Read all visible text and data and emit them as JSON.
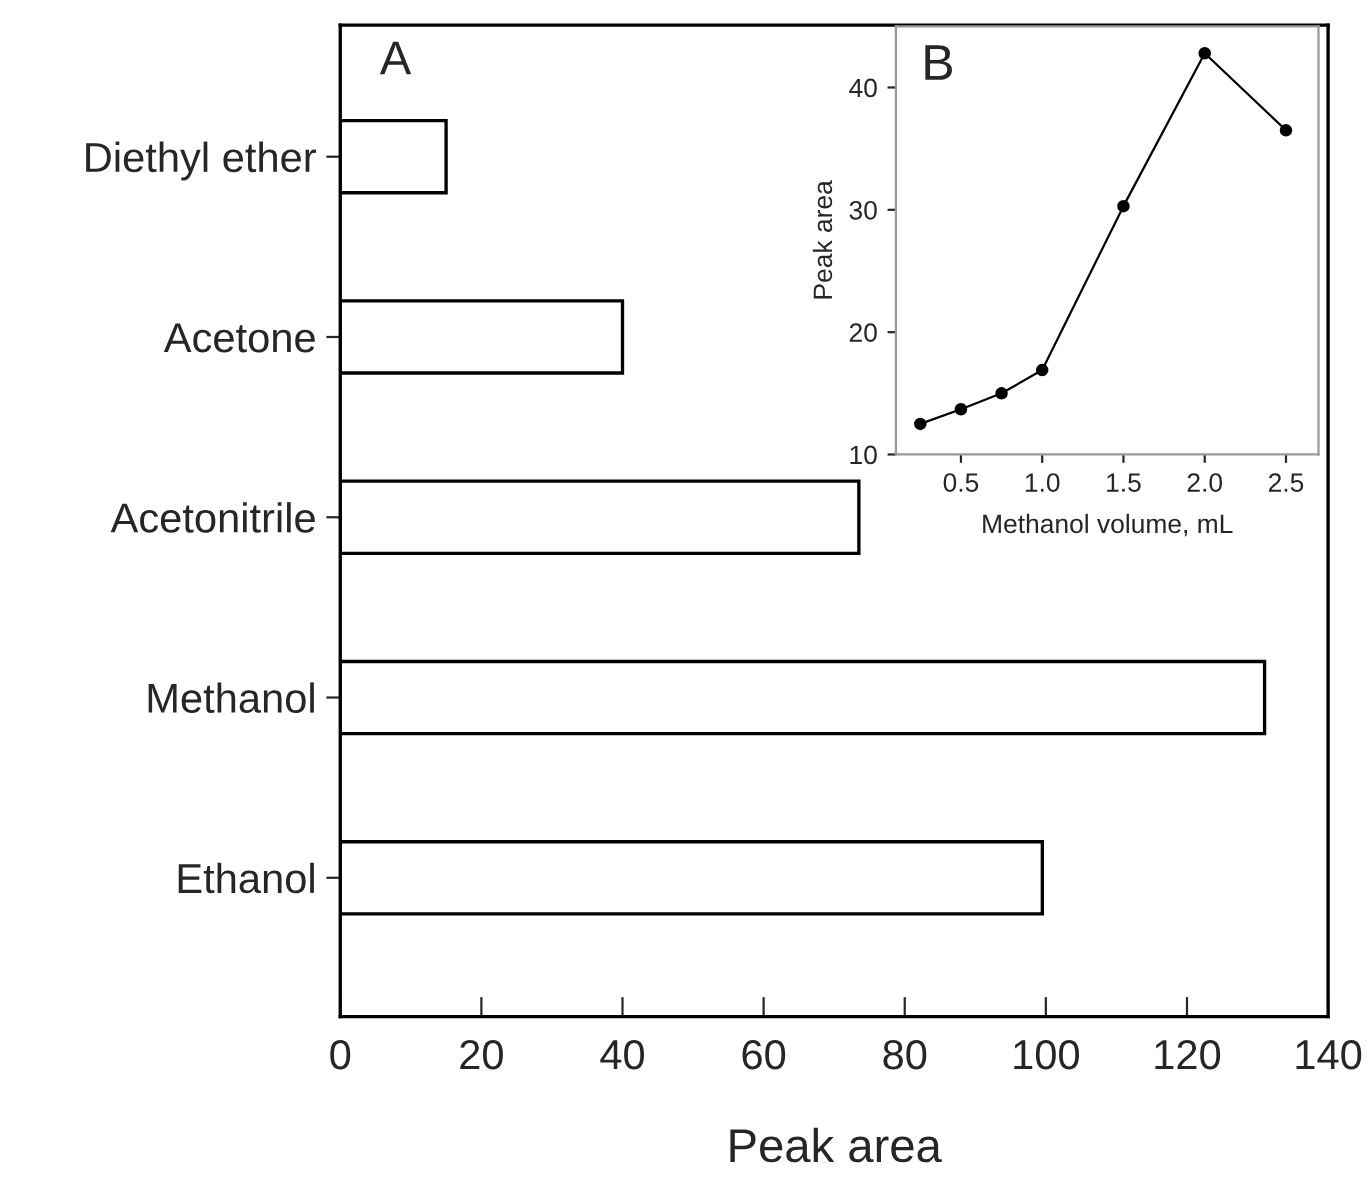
{
  "chart_data": [
    {
      "type": "bar",
      "orientation": "horizontal",
      "categories": [
        "Diethyl ether",
        "Acetone",
        "Acetonitrile",
        "Methanol",
        "Ethanol"
      ],
      "values": [
        15,
        40,
        73.5,
        131,
        99.5
      ],
      "color": "#ffffff",
      "xlim": [
        0,
        140
      ],
      "xticks": [
        0,
        20,
        40,
        60,
        80,
        100,
        120,
        140
      ],
      "xlabel": "Peak area",
      "annotations": [
        "A"
      ]
    },
    {
      "type": "line",
      "x": [
        0.25,
        0.5,
        0.75,
        1.0,
        1.5,
        2.0,
        2.5
      ],
      "values": [
        12.5,
        13.7,
        15.0,
        16.9,
        30.3,
        42.8,
        36.5
      ],
      "color": "#000000",
      "marker": "circle",
      "xlim": [
        0.1,
        2.7
      ],
      "xticks": [
        {
          "value": 0.5,
          "label": "0.5"
        },
        {
          "value": 1.0,
          "label": "1.0"
        },
        {
          "value": 1.5,
          "label": "1.5"
        },
        {
          "value": 2.0,
          "label": "2.0"
        },
        {
          "value": 2.5,
          "label": "2.5"
        }
      ],
      "ylim": [
        10,
        45
      ],
      "yticks": [
        10,
        20,
        30,
        40
      ],
      "xlabel": "Methanol volume, mL",
      "ylabel": "Peak area",
      "annotations": [
        "B"
      ]
    }
  ]
}
